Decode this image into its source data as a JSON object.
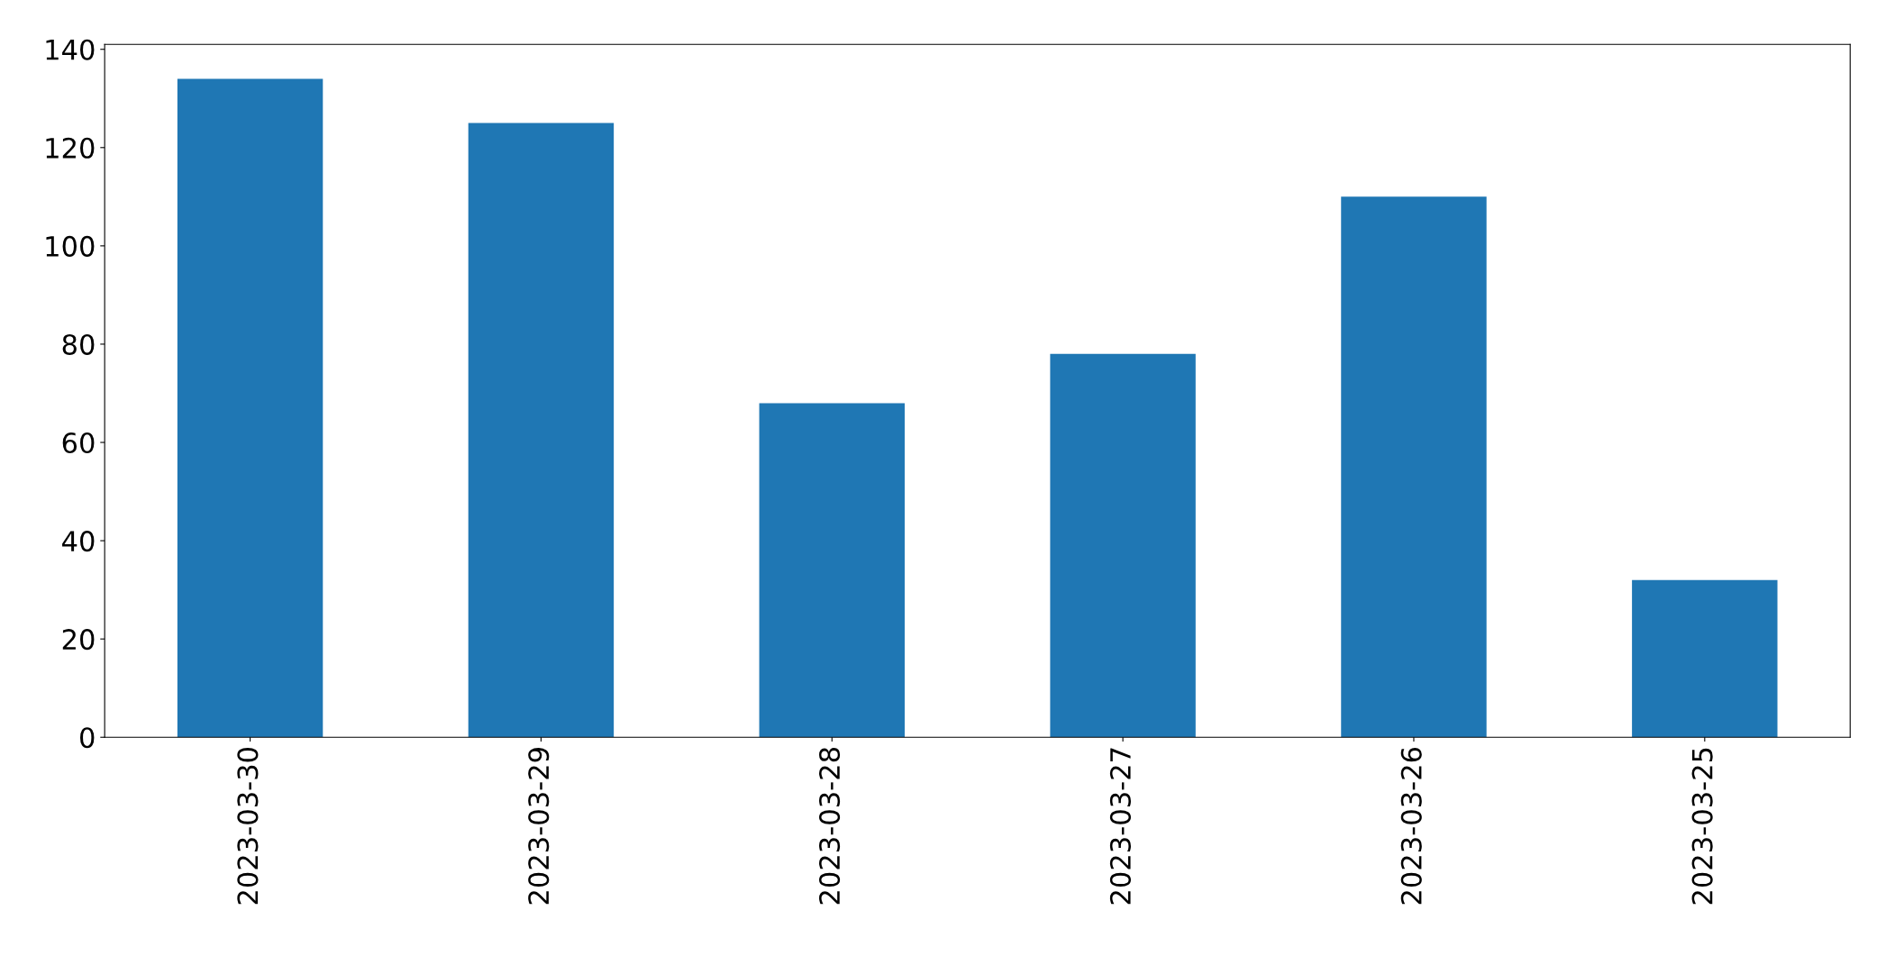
{
  "chart_data": {
    "type": "bar",
    "categories": [
      "2023-03-30",
      "2023-03-29",
      "2023-03-28",
      "2023-03-27",
      "2023-03-26",
      "2023-03-25"
    ],
    "values": [
      134,
      125,
      68,
      78,
      110,
      32
    ],
    "color": "#1f77b4",
    "ylim": [
      0,
      141
    ],
    "yticks": [
      0,
      20,
      40,
      60,
      80,
      100,
      120,
      140
    ],
    "grid": false,
    "legend": false
  }
}
